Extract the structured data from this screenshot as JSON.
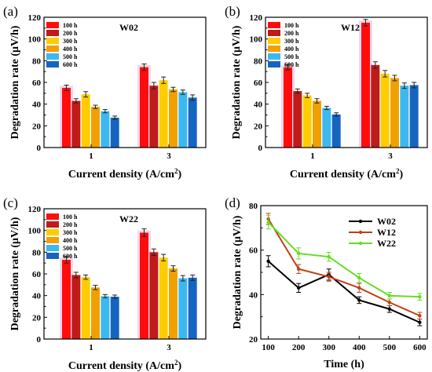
{
  "colors": {
    "bars": [
      "#ff0d0d",
      "#c01a1a",
      "#ffcc00",
      "#f0a000",
      "#3cb8f0",
      "#1565c0"
    ],
    "lines": [
      "#000000",
      "#c0401a",
      "#66dd22"
    ],
    "highlight": "#f6d6ea"
  },
  "chart_data": [
    {
      "type": "bar",
      "panel_label": "(a)",
      "title": "W02",
      "xlabel": "Current density (A/cm",
      "xlabel_sup": "2",
      "xlabel_close": ")",
      "ylabel": "Degradation rate (μV/h)",
      "ylim": [
        0,
        120
      ],
      "yticks": [
        "0",
        "20",
        "40",
        "60",
        "80",
        "100",
        "120"
      ],
      "categories": [
        "1",
        "3"
      ],
      "legend": {
        "position": "top-left"
      },
      "series": [
        {
          "name": "100 h",
          "values": [
            55,
            74
          ],
          "errors": [
            2.5,
            3
          ]
        },
        {
          "name": "200 h",
          "values": [
            43,
            57
          ],
          "errors": [
            2,
            3
          ]
        },
        {
          "name": "300 h",
          "values": [
            49,
            62
          ],
          "errors": [
            2.5,
            3
          ]
        },
        {
          "name": "400 h",
          "values": [
            37.5,
            53.5
          ],
          "errors": [
            1.5,
            2
          ]
        },
        {
          "name": "500 h",
          "values": [
            33.5,
            51
          ],
          "errors": [
            1.5,
            2
          ]
        },
        {
          "name": "600 h",
          "values": [
            27.5,
            46
          ],
          "errors": [
            1.5,
            2.5
          ]
        }
      ]
    },
    {
      "type": "bar",
      "panel_label": "(b)",
      "title": "W12",
      "xlabel": "Current density (A/cm",
      "xlabel_sup": "2",
      "xlabel_close": ")",
      "ylabel": "Degradation rate (μV/h)",
      "ylim": [
        0,
        120
      ],
      "yticks": [
        "0",
        "20",
        "40",
        "60",
        "80",
        "100",
        "120"
      ],
      "categories": [
        "1",
        "3"
      ],
      "legend": {
        "position": "top-left"
      },
      "series": [
        {
          "name": "100 h",
          "values": [
            74,
            115
          ],
          "errors": [
            2.5,
            3
          ]
        },
        {
          "name": "200 h",
          "values": [
            52,
            76
          ],
          "errors": [
            2,
            3
          ]
        },
        {
          "name": "300 h",
          "values": [
            48,
            68
          ],
          "errors": [
            2,
            3
          ]
        },
        {
          "name": "400 h",
          "values": [
            43,
            64
          ],
          "errors": [
            2,
            2.5
          ]
        },
        {
          "name": "500 h",
          "values": [
            36.5,
            57
          ],
          "errors": [
            1.5,
            2.5
          ]
        },
        {
          "name": "600 h",
          "values": [
            30.5,
            57.5
          ],
          "errors": [
            1.5,
            2.5
          ]
        }
      ]
    },
    {
      "type": "bar",
      "panel_label": "(c)",
      "title": "W22",
      "xlabel": "Current density (A/cm",
      "xlabel_sup": "2",
      "xlabel_close": ")",
      "ylabel": "Degradation rate (μV/h)",
      "ylim": [
        0,
        120
      ],
      "yticks": [
        "0",
        "20",
        "40",
        "60",
        "80",
        "100",
        "120"
      ],
      "categories": [
        "1",
        "3"
      ],
      "legend": {
        "position": "top-left"
      },
      "series": [
        {
          "name": "100 h",
          "values": [
            73,
            98
          ],
          "errors": [
            3,
            3.5
          ]
        },
        {
          "name": "200 h",
          "values": [
            59,
            80
          ],
          "errors": [
            2.5,
            3
          ]
        },
        {
          "name": "300 h",
          "values": [
            57,
            75
          ],
          "errors": [
            2,
            3
          ]
        },
        {
          "name": "400 h",
          "values": [
            47.5,
            65
          ],
          "errors": [
            2,
            2.5
          ]
        },
        {
          "name": "500 h",
          "values": [
            39.5,
            56
          ],
          "errors": [
            1.5,
            2.5
          ]
        },
        {
          "name": "600 h",
          "values": [
            39,
            56.5
          ],
          "errors": [
            1.5,
            2.5
          ]
        }
      ]
    },
    {
      "type": "line",
      "panel_label": "(d)",
      "xlabel": "Time (h)",
      "ylabel": "Degradation rate (μV/h)",
      "x": [
        100,
        200,
        300,
        400,
        500,
        600
      ],
      "xticks": [
        "100",
        "200",
        "300",
        "400",
        "500",
        "600"
      ],
      "xlim": [
        75,
        625
      ],
      "ylim": [
        20,
        80
      ],
      "yticks": [
        "20",
        "40",
        "60",
        "80"
      ],
      "legend": {
        "position": "top-right"
      },
      "series": [
        {
          "name": "W02",
          "values": [
            55,
            43,
            49,
            37.5,
            33.5,
            27.5
          ],
          "errors": [
            2.5,
            2,
            2.5,
            1.5,
            1.5,
            1.5
          ]
        },
        {
          "name": "W12",
          "values": [
            74,
            51.5,
            48,
            43,
            36.5,
            30.5
          ],
          "errors": [
            2.5,
            2,
            2,
            2,
            1.5,
            1.5
          ]
        },
        {
          "name": "W22",
          "values": [
            72.5,
            58.5,
            57,
            47.5,
            39.5,
            39
          ],
          "errors": [
            3,
            2.5,
            2,
            2,
            1.5,
            1.5
          ]
        }
      ]
    }
  ]
}
